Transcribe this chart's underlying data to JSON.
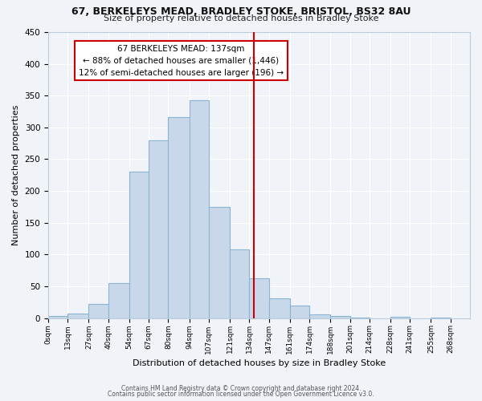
{
  "title1": "67, BERKELEYS MEAD, BRADLEY STOKE, BRISTOL, BS32 8AU",
  "title2": "Size of property relative to detached houses in Bradley Stoke",
  "xlabel": "Distribution of detached houses by size in Bradley Stoke",
  "ylabel": "Number of detached properties",
  "bin_labels": [
    "0sqm",
    "13sqm",
    "27sqm",
    "40sqm",
    "54sqm",
    "67sqm",
    "80sqm",
    "94sqm",
    "107sqm",
    "121sqm",
    "134sqm",
    "147sqm",
    "161sqm",
    "174sqm",
    "188sqm",
    "201sqm",
    "214sqm",
    "228sqm",
    "241sqm",
    "255sqm",
    "268sqm"
  ],
  "bin_edges": [
    0,
    13,
    27,
    40,
    54,
    67,
    80,
    94,
    107,
    121,
    134,
    147,
    161,
    174,
    188,
    201,
    214,
    228,
    241,
    255,
    268
  ],
  "bar_heights": [
    3,
    7,
    22,
    55,
    230,
    280,
    316,
    343,
    175,
    108,
    62,
    31,
    19,
    6,
    3,
    1,
    0,
    2,
    0,
    1
  ],
  "bar_color": "#c8d8ea",
  "bar_edgecolor": "#8ab4d0",
  "vline_x": 137,
  "vline_color": "#cc0000",
  "annotation_title": "67 BERKELEYS MEAD: 137sqm",
  "annotation_line1": "← 88% of detached houses are smaller (1,446)",
  "annotation_line2": "12% of semi-detached houses are larger (196) →",
  "annotation_box_color": "#cc0000",
  "ylim": [
    0,
    450
  ],
  "yticks": [
    0,
    50,
    100,
    150,
    200,
    250,
    300,
    350,
    400,
    450
  ],
  "footer1": "Contains HM Land Registry data © Crown copyright and database right 2024.",
  "footer2": "Contains public sector information licensed under the Open Government Licence v3.0.",
  "bg_color": "#f0f4f8",
  "grid_color": "#ffffff"
}
